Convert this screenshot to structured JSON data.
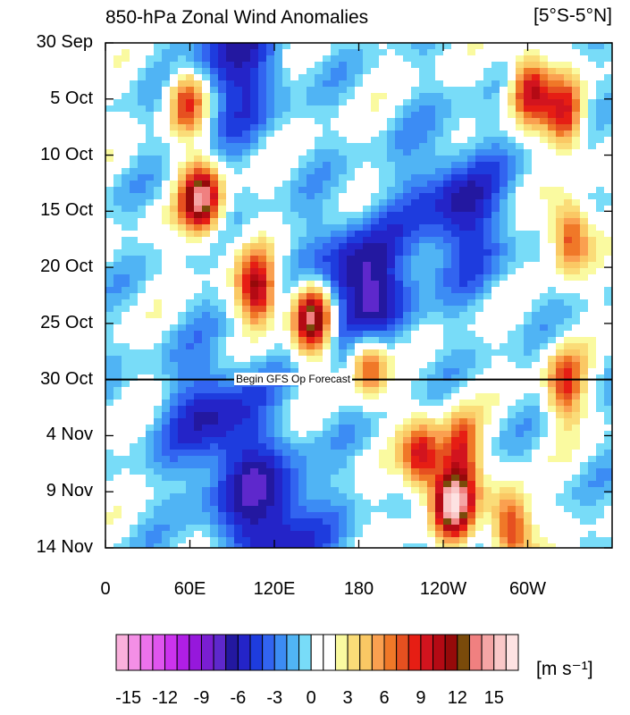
{
  "chart_data": {
    "type": "heatmap",
    "title": "850-hPa Zonal Wind Anomalies",
    "region_label": "[5°S-5°N]",
    "units_label": "[m s⁻¹]",
    "y_ticks": [
      "30 Sep",
      "5 Oct",
      "10 Oct",
      "15 Oct",
      "20 Oct",
      "25 Oct",
      "30 Oct",
      "4 Nov",
      "9 Nov",
      "14 Nov"
    ],
    "x_ticks": [
      "0",
      "60E",
      "120E",
      "180",
      "120W",
      "60W"
    ],
    "x_range_deg": [
      0,
      360
    ],
    "forecast_line": {
      "date": "30 Oct",
      "label": "Begin GFS Op Forecast"
    },
    "colorbar": {
      "levels": [
        -16,
        -15,
        -14,
        -13,
        -12,
        -11,
        -10,
        -9,
        -8,
        -7,
        -6,
        -5,
        -4,
        -3,
        -2,
        -1,
        0,
        1,
        2,
        3,
        4,
        5,
        6,
        7,
        8,
        9,
        10,
        11,
        12,
        13,
        14,
        15,
        16
      ],
      "tick_labels": [
        "-15",
        "-12",
        "-9",
        "-6",
        "-3",
        "0",
        "3",
        "6",
        "9",
        "12",
        "15"
      ],
      "colors": [
        "#f9b0dc",
        "#f48fe6",
        "#ec72ec",
        "#df55ee",
        "#cc33ee",
        "#b01ee6",
        "#9618dc",
        "#7a1ed2",
        "#5e28cc",
        "#2318a0",
        "#2424c8",
        "#1e3cde",
        "#3264f0",
        "#3c8cf4",
        "#50b4f4",
        "#78dcf8",
        "#ffffff",
        "#ffffff",
        "#fafaa0",
        "#fadc78",
        "#fac864",
        "#faa050",
        "#f07828",
        "#e65020",
        "#e61e14",
        "#d2141e",
        "#b40a14",
        "#960a0a",
        "#7a4a0a",
        "#f08080",
        "#f5a5a5",
        "#fac8c8",
        "#fde2e2"
      ]
    },
    "anomaly_features": [
      {
        "lon": 68,
        "day": 14,
        "value": 14,
        "kind": "westerly"
      },
      {
        "lon": 58,
        "day": 5,
        "value": 9,
        "kind": "westerly"
      },
      {
        "lon": 108,
        "day": 22,
        "value": 11,
        "kind": "westerly"
      },
      {
        "lon": 147,
        "day": 24.5,
        "value": 15,
        "kind": "westerly"
      },
      {
        "lon": 187,
        "day": 28.5,
        "value": 9,
        "kind": "westerly"
      },
      {
        "lon": 225,
        "day": 37,
        "value": 10,
        "kind": "westerly"
      },
      {
        "lon": 247,
        "day": 41,
        "value": 15,
        "kind": "westerly"
      },
      {
        "lon": 253,
        "day": 36,
        "value": 8,
        "kind": "westerly"
      },
      {
        "lon": 301,
        "day": 4,
        "value": 10,
        "kind": "westerly"
      },
      {
        "lon": 327,
        "day": 6.5,
        "value": 9,
        "kind": "westerly"
      },
      {
        "lon": 330,
        "day": 17,
        "value": 9,
        "kind": "westerly"
      },
      {
        "lon": 288,
        "day": 43,
        "value": 10,
        "kind": "westerly"
      },
      {
        "lon": 327,
        "day": 30.5,
        "value": 8,
        "kind": "westerly"
      },
      {
        "lon": 250,
        "day": 15,
        "value": -6,
        "kind": "easterly"
      },
      {
        "lon": 180,
        "day": 22,
        "value": -8,
        "kind": "easterly"
      },
      {
        "lon": 120,
        "day": 43,
        "value": -7,
        "kind": "easterly"
      },
      {
        "lon": 80,
        "day": 34,
        "value": -6,
        "kind": "easterly"
      },
      {
        "lon": 90,
        "day": 2,
        "value": -6,
        "kind": "easterly"
      }
    ]
  }
}
